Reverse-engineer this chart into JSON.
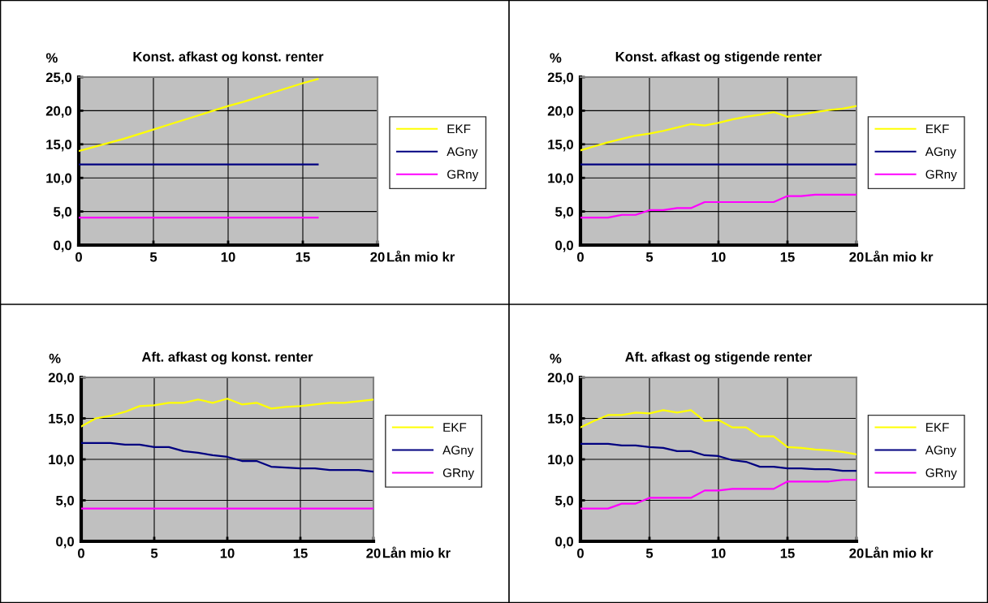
{
  "chart_data": [
    {
      "type": "line",
      "title": "Konst. afkast og konst. renter",
      "ylabel": "%",
      "xlabel": "Lån mio kr",
      "xlim": [
        0,
        20
      ],
      "xticks": [
        0,
        5,
        10,
        15,
        20
      ],
      "ylim": [
        0,
        25
      ],
      "yticks": [
        {
          "value": 0,
          "label": "0,0"
        },
        {
          "value": 5,
          "label": "5,0"
        },
        {
          "value": 10,
          "label": "10,0"
        },
        {
          "value": 15,
          "label": "15,0"
        },
        {
          "value": 20,
          "label": "20,0"
        },
        {
          "value": 25,
          "label": "25,0"
        }
      ],
      "grid": true,
      "legend": "right",
      "marker": "none",
      "line_style": "solid",
      "x": [
        0,
        1,
        2,
        3,
        4,
        5,
        6,
        7,
        8,
        9,
        10,
        11,
        12,
        13,
        14,
        15,
        16
      ],
      "series": [
        {
          "name": "EKF",
          "color": "#ffff00",
          "values": [
            14.0,
            14.6,
            15.2,
            15.8,
            16.5,
            17.2,
            17.9,
            18.6,
            19.3,
            20.0,
            20.7,
            21.3,
            22.0,
            22.7,
            23.4,
            24.1,
            24.7
          ]
        },
        {
          "name": "AGny",
          "color": "#000080",
          "values": [
            12.0,
            12.0,
            12.0,
            12.0,
            12.0,
            12.0,
            12.0,
            12.0,
            12.0,
            12.0,
            12.0,
            12.0,
            12.0,
            12.0,
            12.0,
            12.0,
            12.0
          ]
        },
        {
          "name": "GRny",
          "color": "#ff00ff",
          "values": [
            4.1,
            4.1,
            4.1,
            4.1,
            4.1,
            4.1,
            4.1,
            4.1,
            4.1,
            4.1,
            4.1,
            4.1,
            4.1,
            4.1,
            4.1,
            4.1,
            4.1
          ]
        }
      ]
    },
    {
      "type": "line",
      "title": "Konst. afkast og stigende renter",
      "ylabel": "%",
      "xlabel": "Lån mio kr",
      "xlim": [
        0,
        20
      ],
      "xticks": [
        0,
        5,
        10,
        15,
        20
      ],
      "ylim": [
        0,
        25
      ],
      "yticks": [
        {
          "value": 0,
          "label": "0,0"
        },
        {
          "value": 5,
          "label": "5,0"
        },
        {
          "value": 10,
          "label": "10,0"
        },
        {
          "value": 15,
          "label": "15,0"
        },
        {
          "value": 20,
          "label": "20,0"
        },
        {
          "value": 25,
          "label": "25,0"
        }
      ],
      "grid": true,
      "legend": "right",
      "marker": "none",
      "line_style": "solid",
      "x": [
        0,
        1,
        2,
        3,
        4,
        5,
        6,
        7,
        8,
        9,
        10,
        11,
        12,
        13,
        14,
        15,
        16,
        17,
        18,
        19,
        20
      ],
      "series": [
        {
          "name": "EKF",
          "color": "#ffff00",
          "values": [
            14.1,
            14.7,
            15.3,
            15.8,
            16.3,
            16.6,
            17.0,
            17.5,
            18.0,
            17.8,
            18.2,
            18.7,
            19.1,
            19.4,
            19.8,
            19.1,
            19.4,
            19.8,
            20.1,
            20.3,
            20.7
          ]
        },
        {
          "name": "AGny",
          "color": "#000080",
          "values": [
            12.0,
            12.0,
            12.0,
            12.0,
            12.0,
            12.0,
            12.0,
            12.0,
            12.0,
            12.0,
            12.0,
            12.0,
            12.0,
            12.0,
            12.0,
            12.0,
            12.0,
            12.0,
            12.0,
            12.0,
            12.0
          ]
        },
        {
          "name": "GRny",
          "color": "#ff00ff",
          "values": [
            4.1,
            4.1,
            4.1,
            4.5,
            4.5,
            5.2,
            5.2,
            5.5,
            5.5,
            6.4,
            6.4,
            6.4,
            6.4,
            6.4,
            6.4,
            7.3,
            7.3,
            7.5,
            7.5,
            7.5,
            7.5
          ]
        }
      ]
    },
    {
      "type": "line",
      "title": "Aft. afkast og konst. renter",
      "ylabel": "%",
      "xlabel": "Lån mio kr",
      "xlim": [
        0,
        20
      ],
      "xticks": [
        0,
        5,
        10,
        15,
        20
      ],
      "ylim": [
        0,
        20
      ],
      "yticks": [
        {
          "value": 0,
          "label": "0,0"
        },
        {
          "value": 5,
          "label": "5,0"
        },
        {
          "value": 10,
          "label": "10,0"
        },
        {
          "value": 15,
          "label": "15,0"
        },
        {
          "value": 20,
          "label": "20,0"
        }
      ],
      "grid": true,
      "legend": "right",
      "marker": "none",
      "line_style": "solid",
      "x": [
        0,
        1,
        2,
        3,
        4,
        5,
        6,
        7,
        8,
        9,
        10,
        11,
        12,
        13,
        14,
        15,
        16,
        17,
        18,
        19,
        20
      ],
      "series": [
        {
          "name": "EKF",
          "color": "#ffff00",
          "values": [
            14.0,
            15.0,
            15.3,
            15.8,
            16.5,
            16.6,
            16.9,
            16.9,
            17.3,
            16.9,
            17.4,
            16.7,
            16.9,
            16.2,
            16.4,
            16.5,
            16.7,
            16.9,
            16.9,
            17.1,
            17.3
          ]
        },
        {
          "name": "AGny",
          "color": "#000080",
          "values": [
            12.0,
            12.0,
            12.0,
            11.8,
            11.8,
            11.5,
            11.5,
            11.0,
            10.8,
            10.5,
            10.3,
            9.8,
            9.8,
            9.1,
            9.0,
            8.9,
            8.9,
            8.7,
            8.7,
            8.7,
            8.5
          ]
        },
        {
          "name": "GRny",
          "color": "#ff00ff",
          "values": [
            4.0,
            4.0,
            4.0,
            4.0,
            4.0,
            4.0,
            4.0,
            4.0,
            4.0,
            4.0,
            4.0,
            4.0,
            4.0,
            4.0,
            4.0,
            4.0,
            4.0,
            4.0,
            4.0,
            4.0,
            4.0
          ]
        }
      ]
    },
    {
      "type": "line",
      "title": "Aft. afkast og stigende renter",
      "ylabel": "%",
      "xlabel": "Lån mio kr",
      "xlim": [
        0,
        20
      ],
      "xticks": [
        0,
        5,
        10,
        15,
        20
      ],
      "ylim": [
        0,
        20
      ],
      "yticks": [
        {
          "value": 0,
          "label": "0,0"
        },
        {
          "value": 5,
          "label": "5,0"
        },
        {
          "value": 10,
          "label": "10,0"
        },
        {
          "value": 15,
          "label": "15,0"
        },
        {
          "value": 20,
          "label": "20,0"
        }
      ],
      "grid": true,
      "legend": "right",
      "marker": "none",
      "line_style": "solid",
      "x": [
        0,
        1,
        2,
        3,
        4,
        5,
        6,
        7,
        8,
        9,
        10,
        11,
        12,
        13,
        14,
        15,
        16,
        17,
        18,
        19,
        20
      ],
      "series": [
        {
          "name": "EKF",
          "color": "#ffff00",
          "values": [
            13.9,
            14.7,
            15.4,
            15.4,
            15.7,
            15.6,
            16.0,
            15.7,
            16.0,
            14.7,
            14.8,
            13.9,
            13.9,
            12.8,
            12.8,
            11.5,
            11.4,
            11.2,
            11.1,
            10.9,
            10.6
          ]
        },
        {
          "name": "AGny",
          "color": "#000080",
          "values": [
            11.9,
            11.9,
            11.9,
            11.7,
            11.7,
            11.5,
            11.4,
            11.0,
            11.0,
            10.5,
            10.4,
            9.9,
            9.7,
            9.1,
            9.1,
            8.9,
            8.9,
            8.8,
            8.8,
            8.6,
            8.6
          ]
        },
        {
          "name": "GRny",
          "color": "#ff00ff",
          "values": [
            4.0,
            4.0,
            4.0,
            4.6,
            4.6,
            5.3,
            5.3,
            5.3,
            5.3,
            6.2,
            6.2,
            6.4,
            6.4,
            6.4,
            6.4,
            7.3,
            7.3,
            7.3,
            7.3,
            7.5,
            7.5
          ]
        }
      ]
    }
  ]
}
